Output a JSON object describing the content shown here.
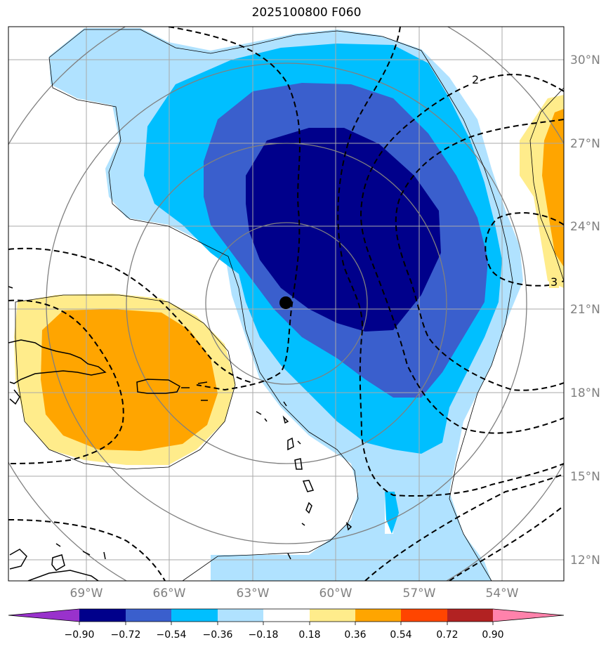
{
  "title": "2025100800 F060",
  "lat_labels": [
    "30°N",
    "27°N",
    "24°N",
    "21°N",
    "18°N",
    "15°N",
    "12°N"
  ],
  "lon_labels": [
    "69°W",
    "66°W",
    "63°W",
    "60°W",
    "57°W",
    "54°W"
  ],
  "contour_labels": [
    "2",
    "3"
  ],
  "colorbar": {
    "ticks": [
      "−0.90",
      "−0.72",
      "−0.54",
      "−0.36",
      "−0.18",
      "0.18",
      "0.36",
      "0.54",
      "0.72",
      "0.90"
    ],
    "colors": [
      "#9932cc",
      "#00008b",
      "#3a5fcd",
      "#00bfff",
      "#b0e2ff",
      "#ffffff",
      "#ffec8b",
      "#ffa500",
      "#ff4500",
      "#b22222",
      "#ff82ab"
    ]
  },
  "storm_marker": {
    "lat": 21.1,
    "lon": -61.7
  }
}
